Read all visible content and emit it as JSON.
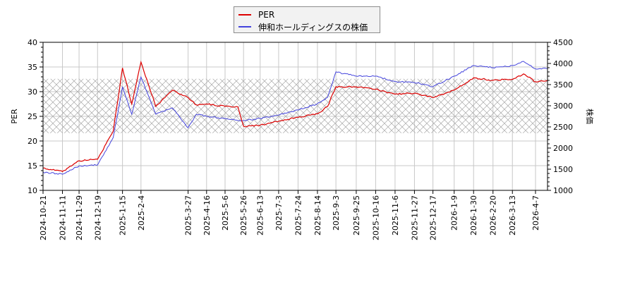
{
  "chart_data": {
    "type": "line",
    "title": "",
    "xlabel": "",
    "ylabel": "PER",
    "ylabel_right": "株価",
    "ylim": [
      10,
      40
    ],
    "ylim_right": [
      1000,
      4500
    ],
    "yticks": [
      10,
      15,
      20,
      25,
      30,
      35,
      40
    ],
    "yticks_right": [
      1000,
      1500,
      2000,
      2500,
      3000,
      3500,
      4000,
      4500
    ],
    "grid": true,
    "legend_position": "top-center",
    "shaded_band": {
      "axis": "left",
      "from": 21.6,
      "to": 32.6,
      "style": "cross-hatch"
    },
    "x_tick_labels": [
      "2024-10-21",
      "2024-11-11",
      "2024-11-29",
      "2024-12-19",
      "2025-1-15",
      "2025-2-4",
      "2025-3-27",
      "2025-4-16",
      "2025-5-6",
      "2025-5-26",
      "2025-6-13",
      "2025-7-3",
      "2025-7-24",
      "2025-8-14",
      "2025-9-3",
      "2025-9-25",
      "2025-10-16",
      "2025-11-6",
      "2025-11-27",
      "2025-12-17",
      "2026-1-9",
      "2026-1-30",
      "2026-2-20",
      "2026-3-13",
      "2026-4-7"
    ],
    "x": [
      "2024-10-21",
      "2024-11-11",
      "2024-11-29",
      "2024-12-19",
      "2025-1-5",
      "2025-1-15",
      "2025-1-25",
      "2025-2-4",
      "2025-2-20",
      "2025-3-10",
      "2025-3-27",
      "2025-4-5",
      "2025-4-16",
      "2025-5-6",
      "2025-5-20",
      "2025-5-26",
      "2025-6-13",
      "2025-7-3",
      "2025-7-24",
      "2025-8-14",
      "2025-8-25",
      "2025-9-3",
      "2025-9-25",
      "2025-10-16",
      "2025-11-6",
      "2025-11-27",
      "2025-12-17",
      "2026-1-9",
      "2026-1-30",
      "2026-2-20",
      "2026-3-13",
      "2026-3-25",
      "2026-4-7",
      "2026-4-20"
    ],
    "series": [
      {
        "name": "PER",
        "axis": "left",
        "color": "#dd0000",
        "values": [
          14.5,
          13.8,
          16.0,
          16.3,
          22.0,
          34.8,
          27.5,
          36.0,
          27.0,
          30.3,
          28.8,
          27.3,
          27.5,
          27.0,
          26.9,
          23.0,
          23.2,
          24.0,
          24.8,
          25.5,
          27.0,
          31.0,
          31.0,
          30.5,
          29.5,
          29.7,
          28.8,
          30.3,
          32.8,
          32.3,
          32.5,
          33.6,
          32.0,
          32.3
        ]
      },
      {
        "name": "伸和ホールディングスの株価",
        "axis": "right",
        "color": "#4444dd",
        "values": [
          1430,
          1380,
          1580,
          1600,
          2250,
          3450,
          2800,
          3680,
          2800,
          2950,
          2480,
          2800,
          2750,
          2700,
          2650,
          2650,
          2700,
          2780,
          2900,
          3050,
          3200,
          3800,
          3700,
          3700,
          3570,
          3550,
          3450,
          3700,
          3950,
          3900,
          3950,
          4050,
          3870,
          3880
        ]
      }
    ]
  },
  "legend": {
    "items": [
      {
        "label": "PER",
        "color": "#dd0000"
      },
      {
        "label": "伸和ホールディングスの株価",
        "color": "#4444dd"
      }
    ]
  },
  "axes": {
    "left_title": "PER",
    "right_title": "株価"
  }
}
